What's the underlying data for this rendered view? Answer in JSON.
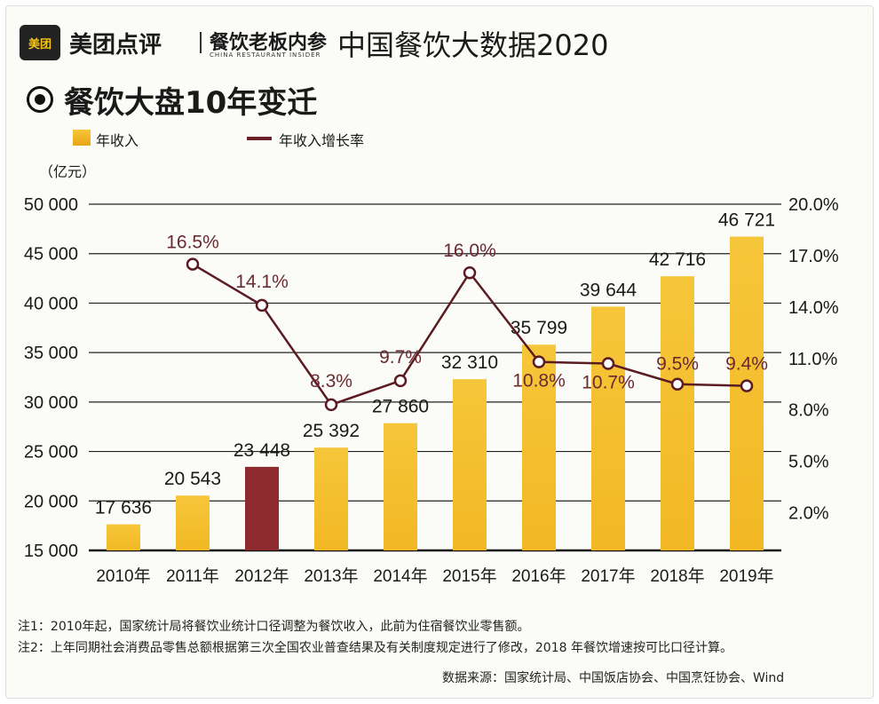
{
  "header": {
    "logo_text": "美团",
    "brand": "美团点评",
    "partner": "餐饮老板内参",
    "partner_sub": "CHINA RESTAURANT INSIDER",
    "main_title": "中国餐饮大数据2020",
    "subtitle": "餐饮大盘10年变迁"
  },
  "legend": {
    "bar_label": "年收入",
    "line_label": "年收入增长率"
  },
  "chart_data": {
    "type": "bar",
    "y_unit": "（亿元）",
    "categories": [
      "2010年",
      "2011年",
      "2012年",
      "2013年",
      "2014年",
      "2015年",
      "2016年",
      "2017年",
      "2018年",
      "2019年"
    ],
    "series": [
      {
        "name": "年收入",
        "type": "bar",
        "values": [
          17636,
          20543,
          23448,
          25392,
          27860,
          32310,
          35799,
          39644,
          42716,
          46721
        ],
        "labels": [
          "17 636",
          "20 543",
          "23 448",
          "25 392",
          "27 860",
          "32 310",
          "35 799",
          "39 644",
          "42 716",
          "46 721"
        ],
        "highlight_index": 2
      },
      {
        "name": "年收入增长率",
        "type": "line",
        "values": [
          null,
          16.5,
          14.1,
          8.3,
          9.7,
          16.0,
          10.8,
          10.7,
          9.5,
          9.4
        ],
        "labels": [
          "",
          "16.5%",
          "14.1%",
          "8.3%",
          "9.7%",
          "16.0%",
          "10.8%",
          "10.7%",
          "9.5%",
          "9.4%"
        ]
      }
    ],
    "y_left": {
      "range": [
        15000,
        50000
      ],
      "ticks": [
        15000,
        20000,
        25000,
        30000,
        35000,
        40000,
        45000,
        50000
      ],
      "tick_labels": [
        "15 000",
        "20 000",
        "25 000",
        "30 000",
        "35 000",
        "40 000",
        "45 000",
        "50 000"
      ]
    },
    "y_right": {
      "range": [
        -0.2,
        20.0
      ],
      "ticks": [
        2.0,
        5.0,
        8.0,
        11.0,
        14.0,
        17.0,
        20.0
      ],
      "tick_labels": [
        "2.0%",
        "5.0%",
        "8.0%",
        "11.0%",
        "14.0%",
        "17.0%",
        "20.0%"
      ]
    },
    "colors": {
      "bar": "#f2b824",
      "bar_highlight": "#8c2a2e",
      "line": "#5a1c22",
      "line_label": "#6a2a30"
    }
  },
  "notes": {
    "note1": "注1：2010年起，国家统计局将餐饮业统计口径调整为餐饮收入，此前为住宿餐饮业零售额。",
    "note2": "注2：上年同期社会消费品零售总额根据第三次全国农业普查结果及有关制度规定进行了修改，2018 年餐饮增速按可比口径计算。",
    "source": "数据来源：国家统计局、中国饭店协会、中国烹饪协会、Wind"
  }
}
